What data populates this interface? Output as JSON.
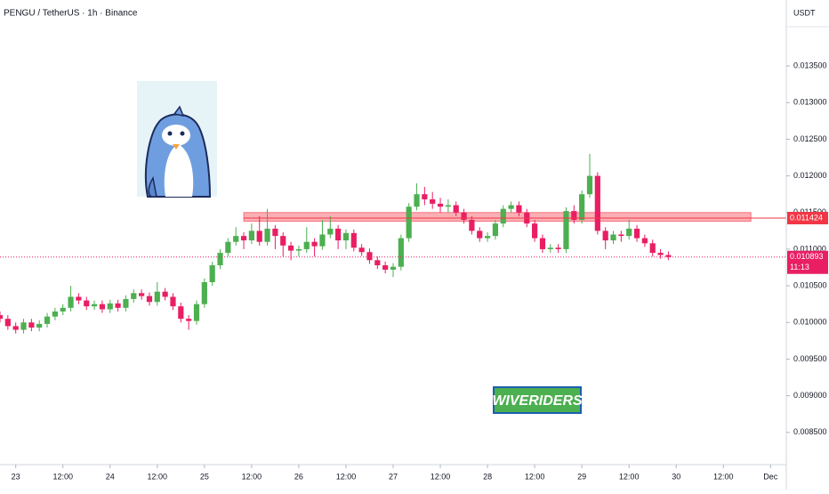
{
  "chart_data": {
    "type": "candlestick",
    "title": "PENGU / TetherUS · 1h · Binance",
    "currency": "USDT",
    "watermark": "WIVERIDERS",
    "up_color": "#4caf50",
    "down_color": "#e91e63",
    "grid": false,
    "xlim": [
      -4,
      196
    ],
    "ylim": [
      0.00806,
      0.0144
    ],
    "xticks": [
      {
        "value": 0,
        "label": "23"
      },
      {
        "value": 12,
        "label": "12:00"
      },
      {
        "value": 24,
        "label": "24"
      },
      {
        "value": 36,
        "label": "12:00"
      },
      {
        "value": 48,
        "label": "25"
      },
      {
        "value": 60,
        "label": "12:00"
      },
      {
        "value": 72,
        "label": "26"
      },
      {
        "value": 84,
        "label": "12:00"
      },
      {
        "value": 96,
        "label": "27"
      },
      {
        "value": 108,
        "label": "12:00"
      },
      {
        "value": 120,
        "label": "28"
      },
      {
        "value": 132,
        "label": "12:00"
      },
      {
        "value": 144,
        "label": "29"
      },
      {
        "value": 156,
        "label": "12:00"
      },
      {
        "value": 168,
        "label": "30"
      },
      {
        "value": 180,
        "label": "12:00"
      },
      {
        "value": 192,
        "label": "Dec"
      }
    ],
    "yticks": [
      {
        "value": 0.0085,
        "label": "0.008500"
      },
      {
        "value": 0.009,
        "label": "0.009000"
      },
      {
        "value": 0.0095,
        "label": "0.009500"
      },
      {
        "value": 0.01,
        "label": "0.010000"
      },
      {
        "value": 0.0105,
        "label": "0.010500"
      },
      {
        "value": 0.011,
        "label": "0.011000"
      },
      {
        "value": 0.0115,
        "label": "0.011500"
      },
      {
        "value": 0.012,
        "label": "0.012000"
      },
      {
        "value": 0.0125,
        "label": "0.012500"
      },
      {
        "value": 0.013,
        "label": "0.013000"
      },
      {
        "value": 0.0135,
        "label": "0.013500"
      }
    ],
    "zone": {
      "low": 0.01138,
      "high": 0.0115,
      "x": [
        58,
        187
      ],
      "color": "#f23645"
    },
    "level": {
      "value": 0.011424,
      "label": "0.011424",
      "x": 58,
      "color": "#f23645"
    },
    "last_price": {
      "value": 0.010893,
      "label": "0.010893",
      "countdown": "11:13",
      "color": "#e91e63"
    },
    "x": [
      -4,
      -2,
      0,
      2,
      4,
      6,
      8,
      10,
      12,
      14,
      16,
      18,
      20,
      22,
      24,
      26,
      28,
      30,
      32,
      34,
      36,
      38,
      40,
      42,
      44,
      46,
      48,
      50,
      52,
      54,
      56,
      58,
      60,
      62,
      64,
      66,
      68,
      70,
      72,
      74,
      76,
      78,
      80,
      82,
      84,
      86,
      88,
      90,
      92,
      94,
      96,
      98,
      100,
      102,
      104,
      106,
      108,
      110,
      112,
      114,
      116,
      118,
      120,
      122,
      124,
      126,
      128,
      130,
      132,
      134,
      136,
      138,
      140,
      142,
      144,
      146,
      148,
      150,
      152,
      154,
      156,
      158,
      160,
      162,
      164,
      166
    ],
    "open": [
      0.0101,
      0.01005,
      0.00995,
      0.0099,
      0.01,
      0.00993,
      0.00998,
      0.01008,
      0.01015,
      0.0102,
      0.01035,
      0.0103,
      0.01022,
      0.01025,
      0.01018,
      0.01026,
      0.0102,
      0.01032,
      0.0104,
      0.01036,
      0.01028,
      0.01042,
      0.01035,
      0.01022,
      0.01005,
      0.01002,
      0.01025,
      0.01055,
      0.01078,
      0.01095,
      0.0111,
      0.01118,
      0.01112,
      0.01125,
      0.0111,
      0.01128,
      0.01118,
      0.01105,
      0.01098,
      0.011,
      0.0111,
      0.01104,
      0.0112,
      0.01128,
      0.01112,
      0.01122,
      0.01102,
      0.01096,
      0.01085,
      0.01078,
      0.01072,
      0.01076,
      0.01115,
      0.01158,
      0.01175,
      0.01168,
      0.01162,
      0.01158,
      0.0116,
      0.0115,
      0.0114,
      0.01125,
      0.01115,
      0.01118,
      0.01135,
      0.01155,
      0.0116,
      0.0115,
      0.01135,
      0.01115,
      0.011,
      0.01102,
      0.011,
      0.01152,
      0.0114,
      0.01175,
      0.012,
      0.01125,
      0.01112,
      0.0112,
      0.01118,
      0.01128,
      0.01115,
      0.01108,
      0.01095,
      0.01092
    ],
    "high": [
      0.01015,
      0.0101,
      0.01,
      0.01005,
      0.01005,
      0.01003,
      0.01013,
      0.0102,
      0.01025,
      0.0105,
      0.0104,
      0.01035,
      0.0103,
      0.0103,
      0.01031,
      0.01031,
      0.01037,
      0.01045,
      0.01045,
      0.01041,
      0.01055,
      0.01047,
      0.0104,
      0.01027,
      0.0101,
      0.0103,
      0.0106,
      0.01083,
      0.011,
      0.01115,
      0.0113,
      0.01123,
      0.01135,
      0.01145,
      0.01155,
      0.01133,
      0.01123,
      0.0111,
      0.01105,
      0.0113,
      0.01115,
      0.0114,
      0.01145,
      0.01133,
      0.01127,
      0.01127,
      0.01107,
      0.01101,
      0.0109,
      0.01083,
      0.01081,
      0.0112,
      0.01163,
      0.0119,
      0.01185,
      0.01178,
      0.0117,
      0.01168,
      0.01165,
      0.01155,
      0.01145,
      0.0113,
      0.01123,
      0.0114,
      0.0116,
      0.01165,
      0.01165,
      0.01155,
      0.0114,
      0.0112,
      0.01107,
      0.01107,
      0.01157,
      0.0116,
      0.0118,
      0.0123,
      0.01205,
      0.0113,
      0.01125,
      0.01125,
      0.0114,
      0.01133,
      0.0112,
      0.01113,
      0.011,
      0.01097
    ],
    "low": [
      0.01,
      0.0099,
      0.00985,
      0.00985,
      0.00988,
      0.00988,
      0.00993,
      0.01003,
      0.0101,
      0.01015,
      0.01025,
      0.01017,
      0.01017,
      0.01013,
      0.01013,
      0.01015,
      0.01015,
      0.01027,
      0.01031,
      0.01023,
      0.01023,
      0.0103,
      0.01017,
      0.01,
      0.0099,
      0.00997,
      0.0102,
      0.0105,
      0.01073,
      0.0109,
      0.01105,
      0.011,
      0.01107,
      0.01105,
      0.01105,
      0.011,
      0.0109,
      0.01085,
      0.0109,
      0.01095,
      0.0109,
      0.01099,
      0.01115,
      0.011,
      0.011,
      0.01097,
      0.01091,
      0.0108,
      0.01073,
      0.01067,
      0.01062,
      0.01071,
      0.0111,
      0.01153,
      0.0116,
      0.01155,
      0.0115,
      0.0115,
      0.01145,
      0.01135,
      0.0112,
      0.0111,
      0.0111,
      0.01113,
      0.0113,
      0.0115,
      0.01145,
      0.0113,
      0.0111,
      0.01095,
      0.01095,
      0.01095,
      0.01095,
      0.01135,
      0.01135,
      0.0117,
      0.0112,
      0.011,
      0.01107,
      0.0111,
      0.01113,
      0.0111,
      0.01103,
      0.0109,
      0.01087,
      0.01085
    ],
    "close": [
      0.01005,
      0.00995,
      0.0099,
      0.01,
      0.00993,
      0.00998,
      0.01008,
      0.01015,
      0.0102,
      0.01035,
      0.0103,
      0.01022,
      0.01025,
      0.01018,
      0.01026,
      0.0102,
      0.01032,
      0.0104,
      0.01036,
      0.01028,
      0.01042,
      0.01035,
      0.01022,
      0.01005,
      0.01002,
      0.01025,
      0.01055,
      0.01078,
      0.01095,
      0.0111,
      0.01118,
      0.01112,
      0.01125,
      0.0111,
      0.01128,
      0.01118,
      0.01105,
      0.01098,
      0.011,
      0.0111,
      0.01104,
      0.0112,
      0.01128,
      0.01112,
      0.01122,
      0.01102,
      0.01096,
      0.01085,
      0.01078,
      0.01072,
      0.01076,
      0.01115,
      0.01158,
      0.01175,
      0.01168,
      0.01162,
      0.01158,
      0.0116,
      0.0115,
      0.0114,
      0.01125,
      0.01115,
      0.01118,
      0.01135,
      0.01155,
      0.0116,
      0.0115,
      0.01135,
      0.01115,
      0.011,
      0.01102,
      0.011,
      0.01152,
      0.0114,
      0.01175,
      0.012,
      0.01125,
      0.01112,
      0.0112,
      0.01118,
      0.01128,
      0.01115,
      0.01108,
      0.01095,
      0.01092,
      0.010893
    ]
  }
}
